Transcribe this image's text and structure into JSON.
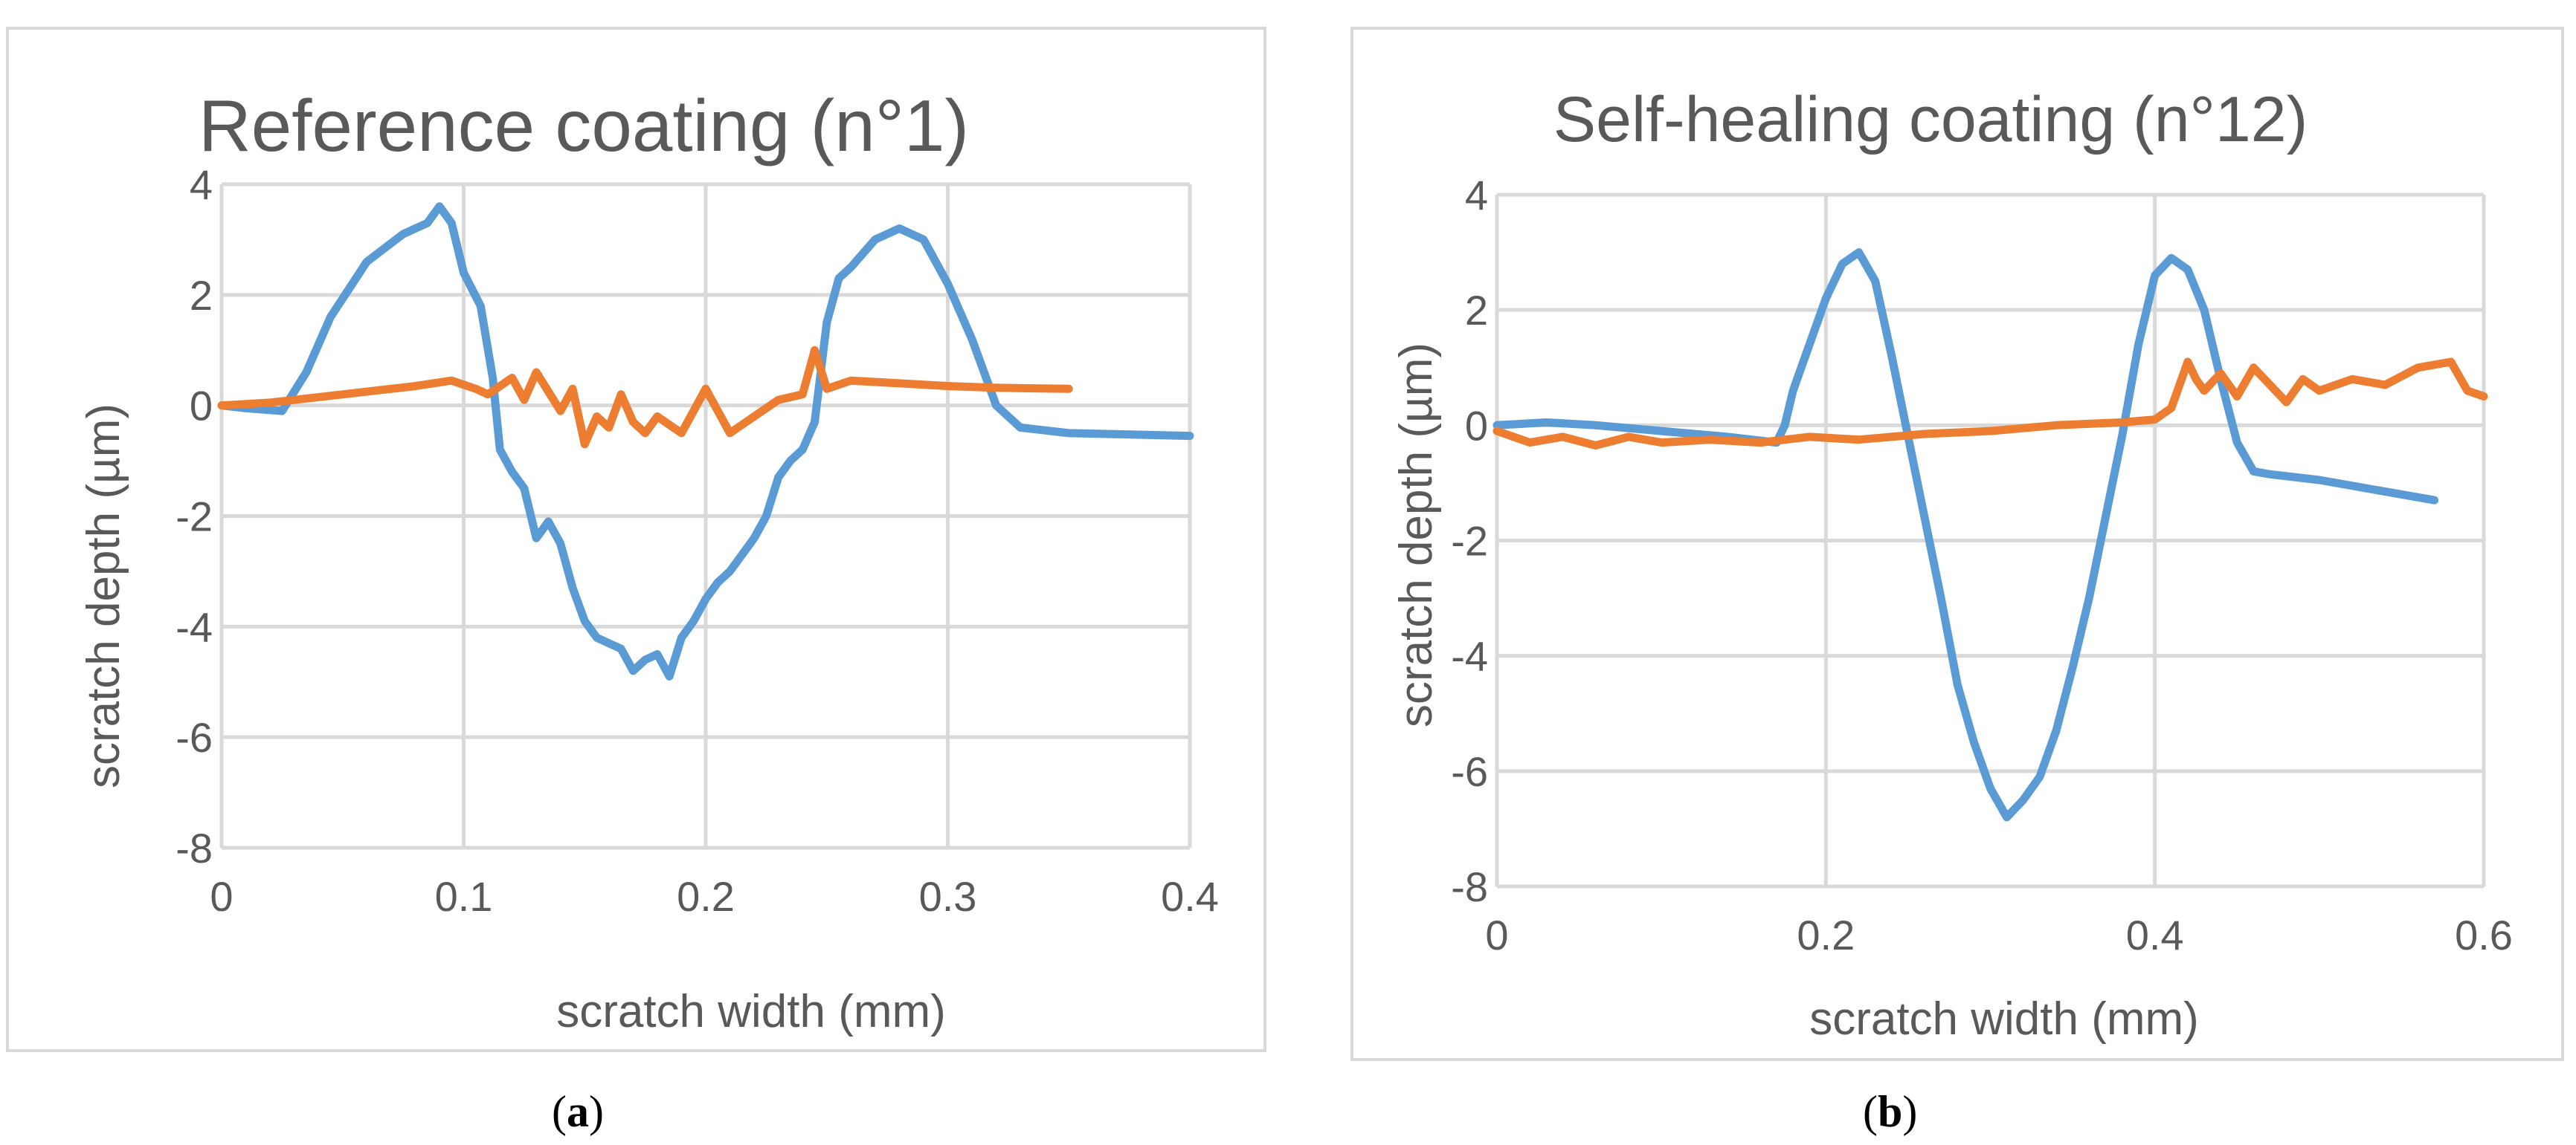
{
  "chart_data": [
    {
      "type": "line",
      "panel_label": "a",
      "title": "Reference coating (n°1)",
      "xlabel": "scratch width (mm)",
      "ylabel": "scratch depth (µm)",
      "xlim": [
        0,
        0.4
      ],
      "ylim": [
        -8,
        4
      ],
      "x_ticks": [
        "0",
        "0.1",
        "0.2",
        "0.3",
        "0.4"
      ],
      "y_ticks": [
        "4",
        "2",
        "0",
        "-2",
        "-4",
        "-6",
        "-8"
      ],
      "x_tick_values": [
        0,
        0.1,
        0.2,
        0.3,
        0.4
      ],
      "y_tick_values": [
        4,
        2,
        0,
        -2,
        -4,
        -6,
        -8
      ],
      "series": [
        {
          "name": "series-blue",
          "color": "#5b9bd5",
          "x": [
            0,
            0.01,
            0.025,
            0.035,
            0.045,
            0.06,
            0.075,
            0.085,
            0.09,
            0.095,
            0.1,
            0.107,
            0.112,
            0.115,
            0.12,
            0.125,
            0.13,
            0.135,
            0.14,
            0.145,
            0.15,
            0.155,
            0.16,
            0.165,
            0.17,
            0.175,
            0.18,
            0.185,
            0.19,
            0.195,
            0.2,
            0.205,
            0.21,
            0.215,
            0.22,
            0.225,
            0.23,
            0.235,
            0.24,
            0.245,
            0.25,
            0.255,
            0.26,
            0.27,
            0.28,
            0.29,
            0.3,
            0.31,
            0.32,
            0.33,
            0.35,
            0.4
          ],
          "y": [
            0,
            -0.05,
            -0.1,
            0.6,
            1.6,
            2.6,
            3.1,
            3.3,
            3.6,
            3.3,
            2.4,
            1.8,
            0.5,
            -0.8,
            -1.2,
            -1.5,
            -2.4,
            -2.1,
            -2.5,
            -3.3,
            -3.9,
            -4.2,
            -4.3,
            -4.4,
            -4.8,
            -4.6,
            -4.5,
            -4.9,
            -4.2,
            -3.9,
            -3.5,
            -3.2,
            -3.0,
            -2.7,
            -2.4,
            -2.0,
            -1.3,
            -1.0,
            -0.8,
            -0.3,
            1.5,
            2.3,
            2.5,
            3.0,
            3.2,
            3.0,
            2.2,
            1.2,
            0.0,
            -0.4,
            -0.5,
            -0.55
          ]
        },
        {
          "name": "series-orange",
          "color": "#ed7d31",
          "x": [
            0,
            0.02,
            0.05,
            0.08,
            0.095,
            0.105,
            0.11,
            0.12,
            0.125,
            0.13,
            0.14,
            0.145,
            0.15,
            0.155,
            0.16,
            0.165,
            0.17,
            0.175,
            0.18,
            0.19,
            0.2,
            0.21,
            0.22,
            0.23,
            0.24,
            0.245,
            0.25,
            0.26,
            0.28,
            0.3,
            0.32,
            0.35
          ],
          "y": [
            0,
            0.05,
            0.2,
            0.35,
            0.45,
            0.3,
            0.2,
            0.5,
            0.1,
            0.6,
            -0.1,
            0.3,
            -0.7,
            -0.2,
            -0.4,
            0.2,
            -0.3,
            -0.5,
            -0.2,
            -0.5,
            0.3,
            -0.5,
            -0.2,
            0.1,
            0.2,
            1.0,
            0.3,
            0.45,
            0.4,
            0.35,
            0.32,
            0.3
          ]
        }
      ]
    },
    {
      "type": "line",
      "panel_label": "b",
      "title": "Self-healing coating (n°12)",
      "xlabel": "scratch width (mm)",
      "ylabel": "scratch depth (µm)",
      "xlim": [
        0,
        0.6
      ],
      "ylim": [
        -8,
        4
      ],
      "x_ticks": [
        "0",
        "0.2",
        "0.4",
        "0.6"
      ],
      "y_ticks": [
        "4",
        "2",
        "0",
        "-2",
        "-4",
        "-6",
        "-8"
      ],
      "x_tick_values": [
        0,
        0.2,
        0.4,
        0.6
      ],
      "y_tick_values": [
        4,
        2,
        0,
        -2,
        -4,
        -6,
        -8
      ],
      "series": [
        {
          "name": "series-blue",
          "color": "#5b9bd5",
          "x": [
            0,
            0.03,
            0.06,
            0.1,
            0.14,
            0.17,
            0.175,
            0.18,
            0.19,
            0.2,
            0.21,
            0.22,
            0.23,
            0.24,
            0.25,
            0.26,
            0.27,
            0.28,
            0.29,
            0.3,
            0.31,
            0.32,
            0.33,
            0.34,
            0.35,
            0.36,
            0.37,
            0.38,
            0.39,
            0.4,
            0.41,
            0.42,
            0.43,
            0.44,
            0.45,
            0.46,
            0.47,
            0.5,
            0.54,
            0.57
          ],
          "y": [
            0,
            0.05,
            0,
            -0.1,
            -0.2,
            -0.3,
            0,
            0.6,
            1.4,
            2.2,
            2.8,
            3.0,
            2.5,
            1.2,
            -0.2,
            -1.6,
            -3.0,
            -4.5,
            -5.5,
            -6.3,
            -6.8,
            -6.5,
            -6.1,
            -5.3,
            -4.2,
            -3.0,
            -1.6,
            -0.2,
            1.4,
            2.6,
            2.9,
            2.7,
            2.0,
            0.8,
            -0.3,
            -0.8,
            -0.85,
            -0.95,
            -1.15,
            -1.3
          ]
        },
        {
          "name": "series-orange",
          "color": "#ed7d31",
          "x": [
            0,
            0.02,
            0.04,
            0.06,
            0.08,
            0.1,
            0.13,
            0.16,
            0.19,
            0.22,
            0.26,
            0.3,
            0.34,
            0.38,
            0.4,
            0.41,
            0.42,
            0.425,
            0.43,
            0.44,
            0.45,
            0.46,
            0.47,
            0.48,
            0.49,
            0.5,
            0.52,
            0.54,
            0.56,
            0.58,
            0.59,
            0.6
          ],
          "y": [
            -0.1,
            -0.3,
            -0.2,
            -0.35,
            -0.2,
            -0.3,
            -0.25,
            -0.3,
            -0.2,
            -0.25,
            -0.15,
            -0.1,
            0.0,
            0.05,
            0.1,
            0.3,
            1.1,
            0.8,
            0.6,
            0.9,
            0.5,
            1.0,
            0.7,
            0.4,
            0.8,
            0.6,
            0.8,
            0.7,
            1.0,
            1.1,
            0.6,
            0.5
          ]
        }
      ]
    }
  ],
  "captions": [
    "a",
    "b"
  ]
}
